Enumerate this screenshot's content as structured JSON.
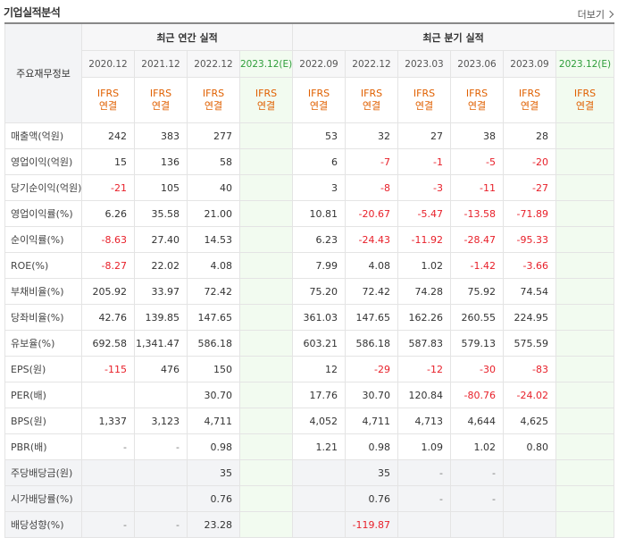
{
  "header": {
    "title": "기업실적분석",
    "more_label": "더보기"
  },
  "table": {
    "row_header_label": "주요재무정보",
    "annual_label": "최근 연간 실적",
    "quarter_label": "최근 분기 실적",
    "annual_periods": [
      "2020.12",
      "2021.12",
      "2022.12",
      "2023.12(E)"
    ],
    "quarter_periods": [
      "2022.09",
      "2022.12",
      "2023.03",
      "2023.06",
      "2023.09",
      "2023.12(E)"
    ],
    "accounting_label": "IFRS",
    "consolidated_label": "연결",
    "rows": [
      {
        "label": "매출액(억원)",
        "values": [
          "242",
          "383",
          "277",
          "",
          "53",
          "32",
          "27",
          "38",
          "28",
          ""
        ]
      },
      {
        "label": "영업이익(억원)",
        "values": [
          "15",
          "136",
          "58",
          "",
          "6",
          "-7",
          "-1",
          "-5",
          "-20",
          ""
        ]
      },
      {
        "label": "당기순이익(억원)",
        "values": [
          "-21",
          "105",
          "40",
          "",
          "3",
          "-8",
          "-3",
          "-11",
          "-27",
          ""
        ]
      },
      {
        "label": "영업이익률(%)",
        "values": [
          "6.26",
          "35.58",
          "21.00",
          "",
          "10.81",
          "-20.67",
          "-5.47",
          "-13.58",
          "-71.89",
          ""
        ]
      },
      {
        "label": "순이익률(%)",
        "values": [
          "-8.63",
          "27.40",
          "14.53",
          "",
          "6.23",
          "-24.43",
          "-11.92",
          "-28.47",
          "-95.33",
          ""
        ]
      },
      {
        "label": "ROE(%)",
        "values": [
          "-8.27",
          "22.02",
          "4.08",
          "",
          "7.99",
          "4.08",
          "1.02",
          "-1.42",
          "-3.66",
          ""
        ]
      },
      {
        "label": "부채비율(%)",
        "values": [
          "205.92",
          "33.97",
          "72.42",
          "",
          "75.20",
          "72.42",
          "74.28",
          "75.92",
          "74.54",
          ""
        ]
      },
      {
        "label": "당좌비율(%)",
        "values": [
          "42.76",
          "139.85",
          "147.65",
          "",
          "361.03",
          "147.65",
          "162.26",
          "260.55",
          "224.95",
          ""
        ]
      },
      {
        "label": "유보율(%)",
        "values": [
          "692.58",
          "1,341.47",
          "586.18",
          "",
          "603.21",
          "586.18",
          "587.83",
          "579.13",
          "575.59",
          ""
        ]
      },
      {
        "label": "EPS(원)",
        "values": [
          "-115",
          "476",
          "150",
          "",
          "12",
          "-29",
          "-12",
          "-30",
          "-83",
          ""
        ]
      },
      {
        "label": "PER(배)",
        "values": [
          "",
          "",
          "30.70",
          "",
          "17.76",
          "30.70",
          "120.84",
          "-80.76",
          "-24.02",
          ""
        ]
      },
      {
        "label": "BPS(원)",
        "values": [
          "1,337",
          "3,123",
          "4,711",
          "",
          "4,052",
          "4,711",
          "4,713",
          "4,644",
          "4,625",
          ""
        ]
      },
      {
        "label": "PBR(배)",
        "values": [
          "-",
          "-",
          "0.98",
          "",
          "1.21",
          "0.98",
          "1.09",
          "1.02",
          "0.80",
          ""
        ]
      },
      {
        "label": "주당배당금(원)",
        "shade": true,
        "values": [
          "",
          "",
          "35",
          "",
          "",
          "35",
          "-",
          "-",
          "",
          ""
        ]
      },
      {
        "label": "시가배당률(%)",
        "shade": true,
        "values": [
          "",
          "",
          "0.76",
          "",
          "",
          "0.76",
          "-",
          "-",
          "",
          ""
        ]
      },
      {
        "label": "배당성향(%)",
        "shade": true,
        "values": [
          "-",
          "-",
          "23.28",
          "",
          "",
          "-119.87",
          "",
          "",
          "",
          ""
        ]
      }
    ]
  }
}
